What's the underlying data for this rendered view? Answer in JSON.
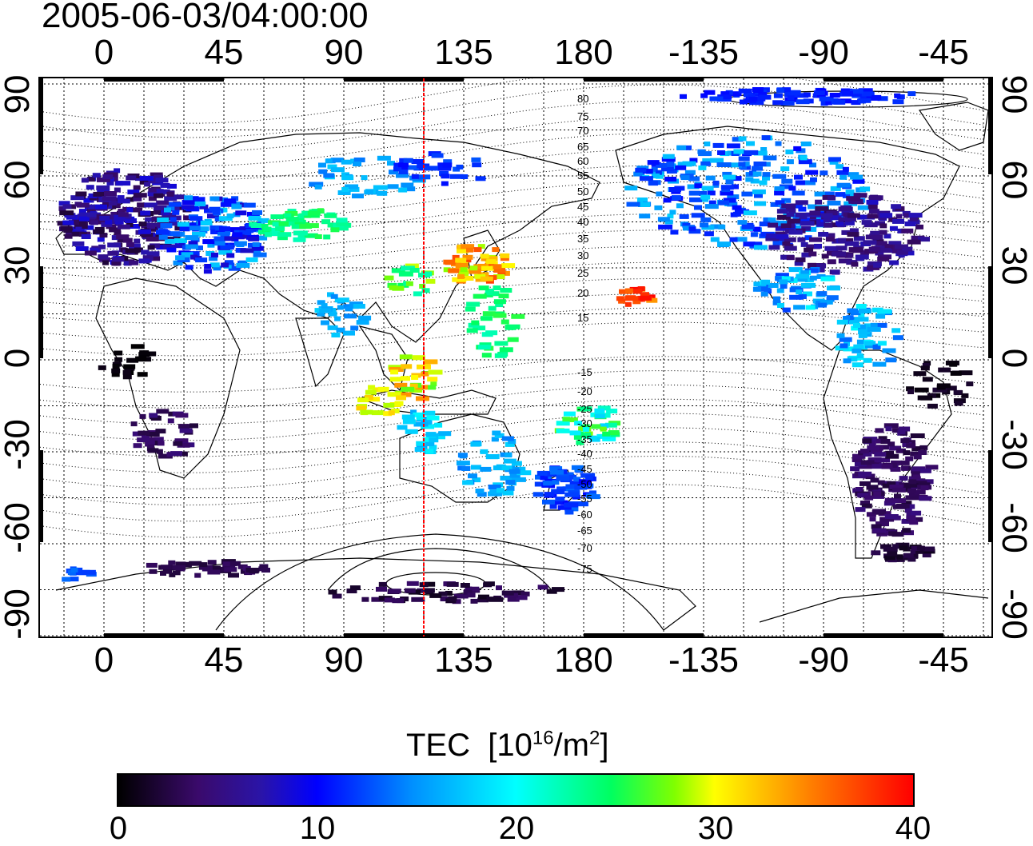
{
  "title": "2005-06-03/04:00:00",
  "top_ticks": [
    "0",
    "45",
    "90",
    "135",
    "180",
    "-135",
    "-90",
    "-45"
  ],
  "bottom_ticks": [
    "0",
    "45",
    "90",
    "135",
    "180",
    "-135",
    "-90",
    "-45"
  ],
  "left_ticks": [
    "90",
    "60",
    "30",
    "0",
    "-30",
    "-60",
    "-90"
  ],
  "right_ticks": [
    "90",
    "60",
    "30",
    "0",
    "-30",
    "-60",
    "-90"
  ],
  "contour_labels_north": [
    "80",
    "75",
    "70",
    "65",
    "60",
    "55",
    "50",
    "45",
    "40",
    "35",
    "30",
    "25",
    "20",
    "15"
  ],
  "contour_labels_south": [
    "-15",
    "-20",
    "-25",
    "-30",
    "-35",
    "-40",
    "-45",
    "-50",
    "-55",
    "-60",
    "-65",
    "-70",
    "-75"
  ],
  "colorbar": {
    "title_main": "TEC",
    "title_unit_prefix": "[10",
    "title_exp": "16",
    "title_unit_mid": "/m",
    "title_exp2": "2",
    "title_unit_suffix": "]",
    "ticks": [
      "0",
      "10",
      "20",
      "30",
      "40"
    ],
    "min": 0,
    "max": 40
  },
  "colors": {
    "low": "#000000",
    "mid_low": "#3a0a6b",
    "mid": "#00ffff",
    "high": "#ff0000",
    "meridian": "#ff0000"
  },
  "meridian_longitude": 120
}
